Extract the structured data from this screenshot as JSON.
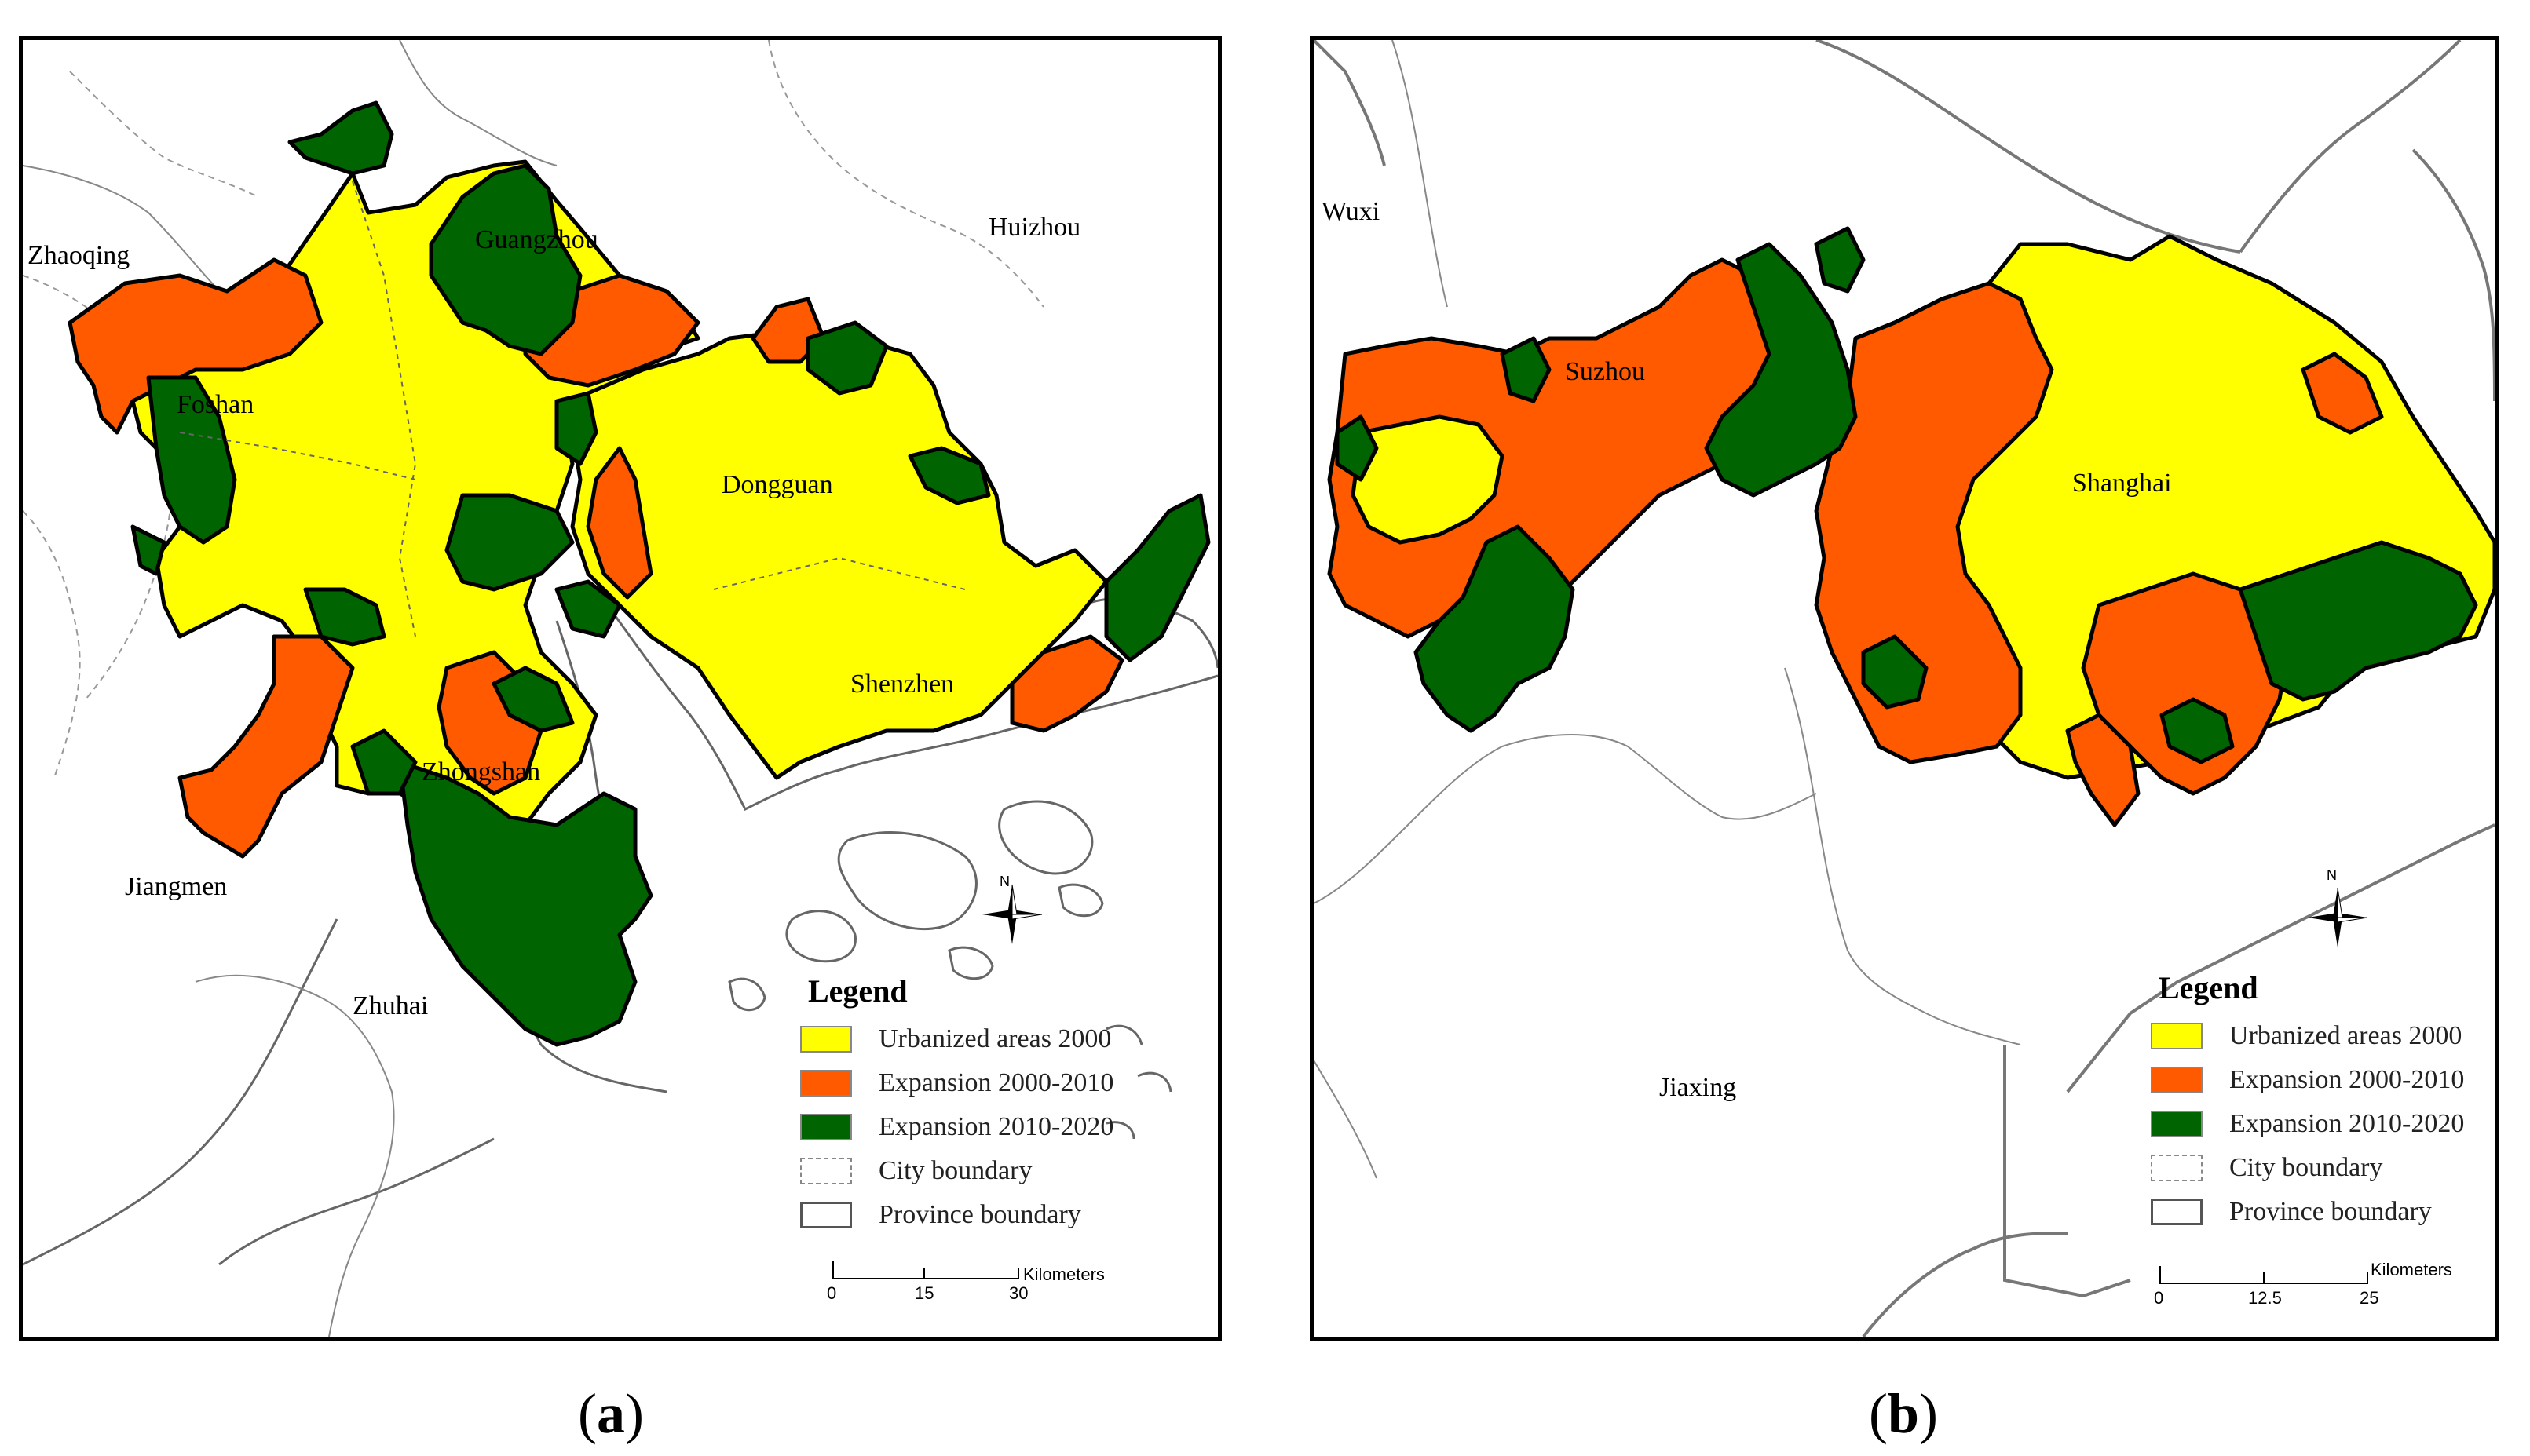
{
  "colors": {
    "urbanized_2000": "#ffff00",
    "expansion_2000_2010": "#ff5a00",
    "expansion_2010_2020": "#006400",
    "boundary": "#777777"
  },
  "panel_a": {
    "caption_letter": "a",
    "cities": {
      "zhaoqing": "Zhaoqing",
      "guangzhou": "Guangzhou",
      "huizhou": "Huizhou",
      "foshan": "Foshan",
      "dongguan": "Dongguan",
      "shenzhen": "Shenzhen",
      "zhongshan": "Zhongshan",
      "jiangmen": "Jiangmen",
      "zhuhai": "Zhuhai"
    },
    "legend": {
      "title": "Legend",
      "items": [
        "Urbanized areas 2000",
        "Expansion 2000-2010",
        "Expansion 2010-2020",
        "City boundary",
        "Province boundary"
      ]
    },
    "scale": {
      "ticks": [
        "0",
        "15",
        "30"
      ],
      "unit": "Kilometers"
    },
    "north": "N"
  },
  "panel_b": {
    "caption_letter": "b",
    "cities": {
      "wuxi": "Wuxi",
      "suzhou": "Suzhou",
      "shanghai": "Shanghai",
      "jiaxing": "Jiaxing"
    },
    "legend": {
      "title": "Legend",
      "items": [
        "Urbanized areas 2000",
        "Expansion 2000-2010",
        "Expansion 2010-2020",
        "City boundary",
        "Province boundary"
      ]
    },
    "scale": {
      "ticks": [
        "0",
        "12.5",
        "25"
      ],
      "unit": "Kilometers"
    },
    "north": "N"
  }
}
